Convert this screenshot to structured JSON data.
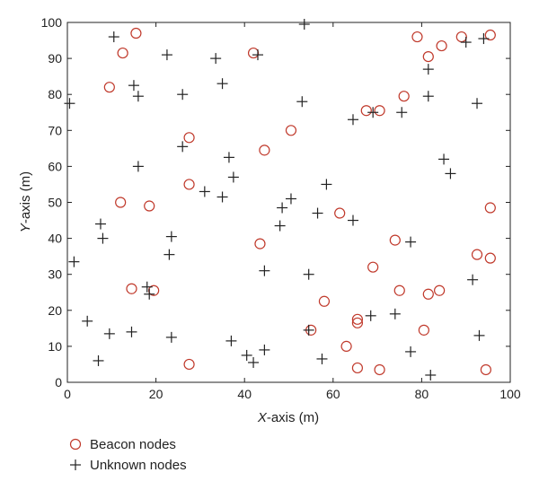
{
  "chart_data": {
    "type": "scatter",
    "xlabel": {
      "var": "X",
      "unit": "-axis (m)"
    },
    "ylabel": {
      "var": "Y",
      "unit": "-axis (m)"
    },
    "xlim": [
      0,
      100
    ],
    "ylim": [
      0,
      100
    ],
    "x_ticks": [
      "0",
      "20",
      "40",
      "60",
      "80",
      "100"
    ],
    "y_ticks": [
      "0",
      "10",
      "20",
      "30",
      "40",
      "50",
      "60",
      "70",
      "80",
      "90",
      "100"
    ],
    "grid": false,
    "legend_position": "bottom-left, outside plot",
    "series": [
      {
        "name": "Beacon nodes",
        "marker": "circle",
        "color": "#c0392b",
        "points": [
          [
            15.5,
            97
          ],
          [
            12.5,
            91.5
          ],
          [
            9.5,
            82
          ],
          [
            42,
            91.5
          ],
          [
            27.5,
            68
          ],
          [
            44.5,
            64.5
          ],
          [
            50.5,
            70
          ],
          [
            67.5,
            75.5
          ],
          [
            70.5,
            75.5
          ],
          [
            76,
            79.5
          ],
          [
            79,
            96
          ],
          [
            81.5,
            90.5
          ],
          [
            84.5,
            93.5
          ],
          [
            89,
            96
          ],
          [
            95.5,
            96.5
          ],
          [
            12,
            50
          ],
          [
            18.5,
            49
          ],
          [
            27.5,
            55
          ],
          [
            61.5,
            47
          ],
          [
            95.5,
            48.5
          ],
          [
            43.5,
            38.5
          ],
          [
            69,
            32
          ],
          [
            74,
            39.5
          ],
          [
            75,
            25.5
          ],
          [
            81.5,
            24.5
          ],
          [
            84,
            25.5
          ],
          [
            92.5,
            35.5
          ],
          [
            95.5,
            34.5
          ],
          [
            14.5,
            26
          ],
          [
            19.5,
            25.5
          ],
          [
            58,
            22.5
          ],
          [
            65.5,
            17.5
          ],
          [
            65.5,
            16.5
          ],
          [
            55,
            14.5
          ],
          [
            63,
            10
          ],
          [
            80.5,
            14.5
          ],
          [
            27.5,
            5
          ],
          [
            65.5,
            4
          ],
          [
            70.5,
            3.5
          ],
          [
            94.5,
            3.5
          ]
        ]
      },
      {
        "name": "Unknown nodes",
        "marker": "plus",
        "color": "#222222",
        "points": [
          [
            10.5,
            96
          ],
          [
            22.5,
            91
          ],
          [
            15,
            82.5
          ],
          [
            16,
            79.5
          ],
          [
            26,
            80
          ],
          [
            33.5,
            90
          ],
          [
            35,
            83
          ],
          [
            43,
            91
          ],
          [
            53.5,
            99.5
          ],
          [
            53,
            78
          ],
          [
            64.5,
            73
          ],
          [
            69,
            75
          ],
          [
            75.5,
            75
          ],
          [
            81.5,
            87
          ],
          [
            81.5,
            79.5
          ],
          [
            90,
            94.5
          ],
          [
            94,
            95.5
          ],
          [
            92.5,
            77.5
          ],
          [
            0.5,
            77.5
          ],
          [
            26,
            65.5
          ],
          [
            16,
            60
          ],
          [
            36.5,
            62.5
          ],
          [
            37.5,
            57
          ],
          [
            31,
            53
          ],
          [
            35,
            51.5
          ],
          [
            48.5,
            48.5
          ],
          [
            50.5,
            51
          ],
          [
            58.5,
            55
          ],
          [
            56.5,
            47
          ],
          [
            64.5,
            45
          ],
          [
            85,
            62
          ],
          [
            86.5,
            58
          ],
          [
            7.5,
            44
          ],
          [
            8,
            40
          ],
          [
            23.5,
            40.5
          ],
          [
            23,
            35.5
          ],
          [
            1.5,
            33.5
          ],
          [
            48,
            43.5
          ],
          [
            44.5,
            31
          ],
          [
            54.5,
            30
          ],
          [
            77.5,
            39
          ],
          [
            91.5,
            28.5
          ],
          [
            18,
            26.5
          ],
          [
            18.5,
            24.5
          ],
          [
            4.5,
            17
          ],
          [
            9.5,
            13.5
          ],
          [
            14.5,
            14
          ],
          [
            23.5,
            12.5
          ],
          [
            37,
            11.5
          ],
          [
            40.5,
            7.5
          ],
          [
            42,
            5.5
          ],
          [
            44.5,
            9
          ],
          [
            54.5,
            14.5
          ],
          [
            57.5,
            6.5
          ],
          [
            68.5,
            18.5
          ],
          [
            74,
            19
          ],
          [
            77.5,
            8.5
          ],
          [
            82,
            2
          ],
          [
            93,
            13
          ],
          [
            7,
            6
          ]
        ]
      }
    ]
  }
}
